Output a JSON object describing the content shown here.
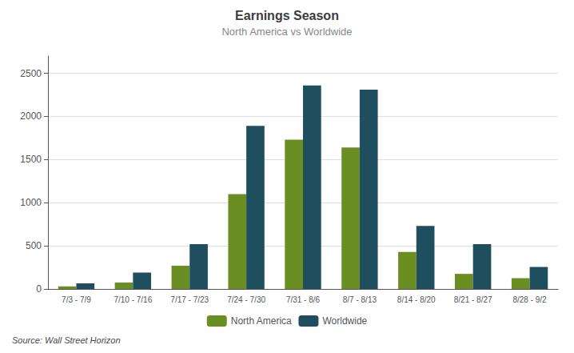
{
  "chart_data": {
    "type": "bar",
    "title": "Earnings Season",
    "subtitle": "North America vs Worldwide",
    "source": "Source: Wall Street Horizon",
    "categories": [
      "7/3 - 7/9",
      "7/10 - 7/16",
      "7/17 - 7/23",
      "7/24 - 7/30",
      "7/31 - 8/6",
      "8/7 - 8/13",
      "8/14 - 8/20",
      "8/21 - 8/27",
      "8/28 - 9/2"
    ],
    "series": [
      {
        "name": "North America",
        "color": "#6b8e23",
        "values": [
          30,
          75,
          270,
          1100,
          1730,
          1640,
          430,
          175,
          125
        ]
      },
      {
        "name": "Worldwide",
        "color": "#1f4e5f",
        "values": [
          65,
          190,
          520,
          1890,
          2360,
          2310,
          730,
          520,
          255
        ]
      }
    ],
    "ylim": [
      0,
      2700
    ],
    "yticks": [
      0,
      500,
      1000,
      1500,
      2000,
      2500
    ],
    "grid": true,
    "legend": "bottom"
  }
}
